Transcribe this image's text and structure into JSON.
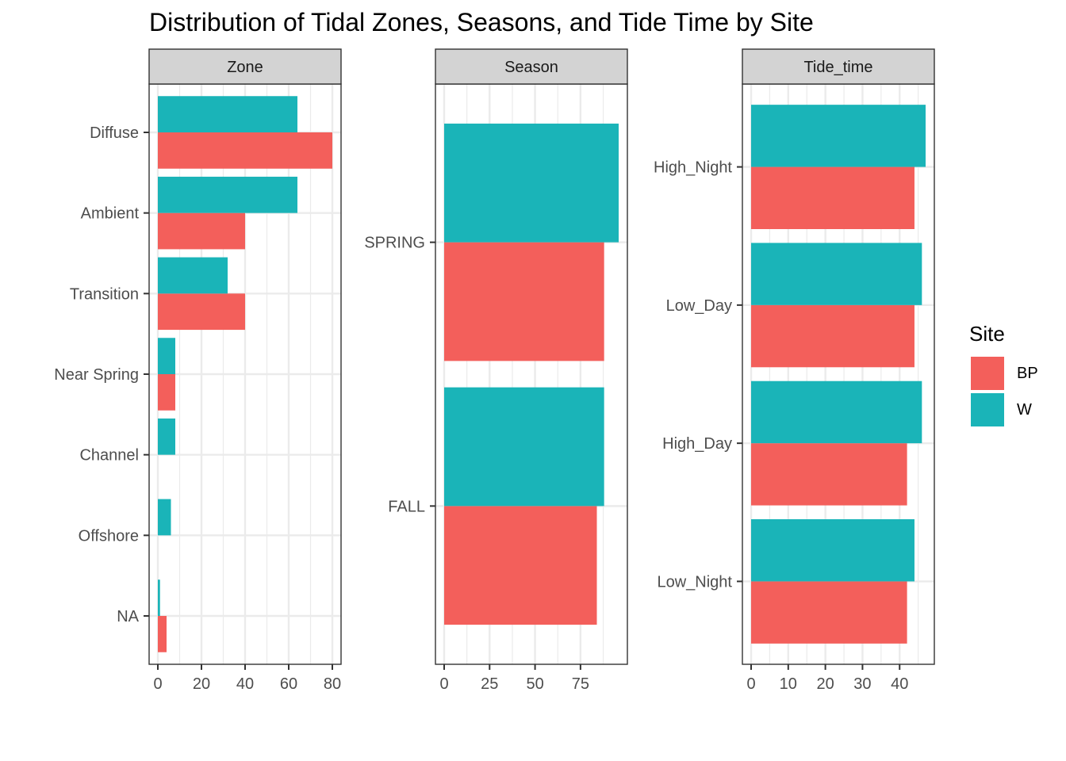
{
  "title": "Distribution of Tidal Zones, Seasons, and Tide Time by Site",
  "colors": {
    "BP": "#F35F5B",
    "W": "#1AB4B8",
    "strip": "#D3D3D3",
    "grid": "#EBEBEB"
  },
  "legend": {
    "title": "Site",
    "items": [
      {
        "label": "BP",
        "color": "#F35F5B"
      },
      {
        "label": "W",
        "color": "#1AB4B8"
      }
    ]
  },
  "chart_data": [
    {
      "type": "bar",
      "panel": "Zone",
      "orientation": "horizontal",
      "categories": [
        "Diffuse",
        "Ambient",
        "Transition",
        "Near Spring",
        "Channel",
        "Offshore",
        "NA"
      ],
      "series": [
        {
          "name": "BP",
          "values": [
            80,
            40,
            40,
            8,
            0,
            0,
            4
          ]
        },
        {
          "name": "W",
          "values": [
            64,
            64,
            32,
            8,
            8,
            6,
            1
          ]
        }
      ],
      "xlim": [
        -4,
        84
      ],
      "xticks": [
        0,
        20,
        40,
        60,
        80
      ]
    },
    {
      "type": "bar",
      "panel": "Season",
      "orientation": "horizontal",
      "categories": [
        "SPRING",
        "FALL"
      ],
      "series": [
        {
          "name": "BP",
          "values": [
            88,
            84
          ]
        },
        {
          "name": "W",
          "values": [
            96,
            88
          ]
        }
      ],
      "xlim": [
        -4.8,
        100.8
      ],
      "xticks": [
        0,
        25,
        50,
        75
      ]
    },
    {
      "type": "bar",
      "panel": "Tide_time",
      "orientation": "horizontal",
      "categories": [
        "High_Night",
        "Low_Day",
        "High_Day",
        "Low_Night"
      ],
      "series": [
        {
          "name": "BP",
          "values": [
            44,
            44,
            42,
            42
          ]
        },
        {
          "name": "W",
          "values": [
            47,
            46,
            46,
            44
          ]
        }
      ],
      "xlim": [
        -2.35,
        49.35
      ],
      "xticks": [
        0,
        10,
        20,
        30,
        40
      ]
    }
  ]
}
